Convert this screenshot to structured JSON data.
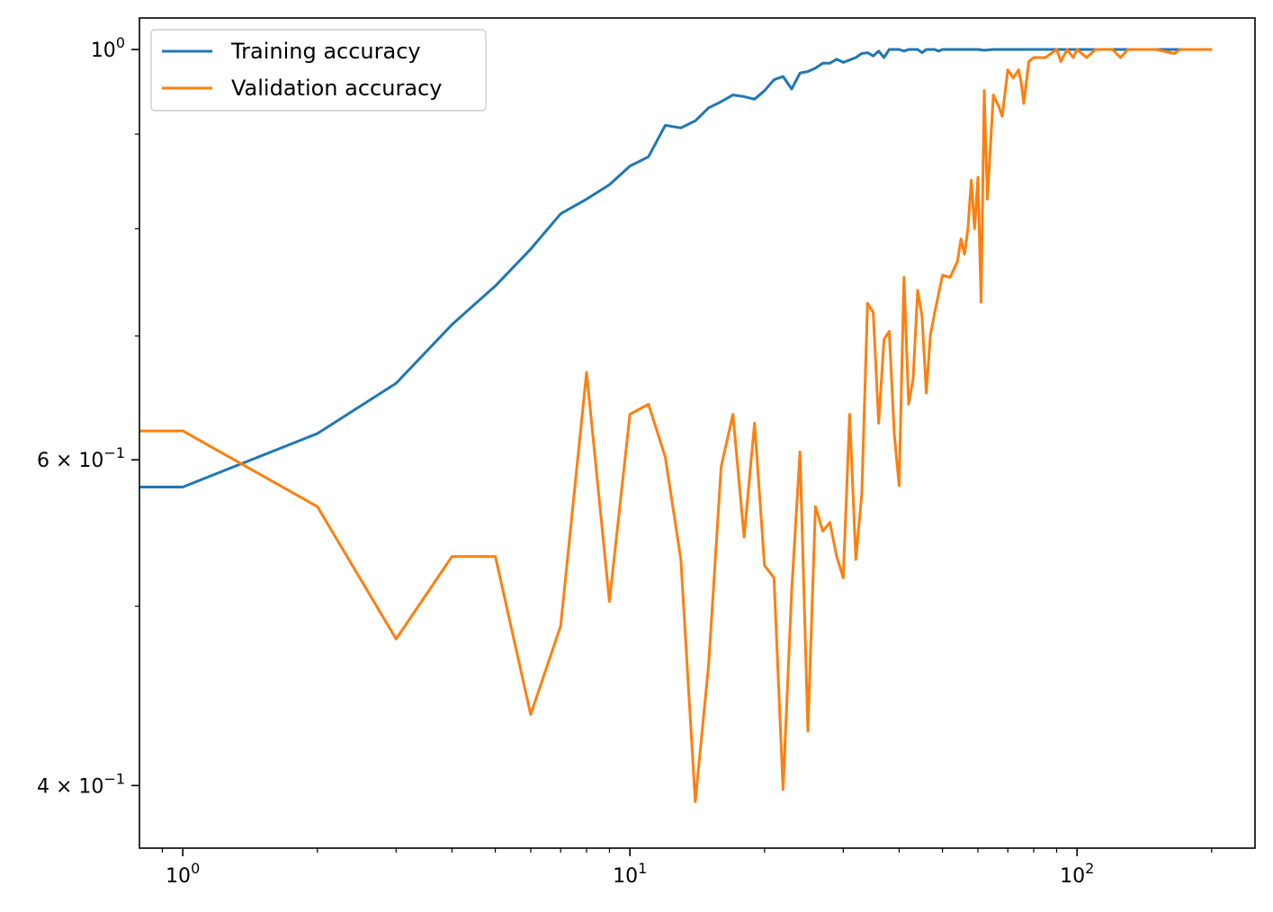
{
  "chart_data": {
    "type": "line",
    "title": "",
    "xlabel": "",
    "ylabel": "",
    "xscale": "log",
    "yscale": "log",
    "xlim": [
      0.8,
      250
    ],
    "ylim": [
      0.37,
      1.04
    ],
    "grid": false,
    "legend_position": "upper-left",
    "x_ticks": [
      {
        "value": 1,
        "base": "10",
        "exp": "0"
      },
      {
        "value": 10,
        "base": "10",
        "exp": "1"
      },
      {
        "value": 100,
        "base": "10",
        "exp": "2"
      }
    ],
    "y_ticks": [
      {
        "value": 1.0,
        "prefix": "",
        "base": "10",
        "exp": "0"
      },
      {
        "value": 0.6,
        "prefix": "6 × ",
        "base": "10",
        "exp": "−1"
      },
      {
        "value": 0.4,
        "prefix": "4 × ",
        "base": "10",
        "exp": "−1"
      }
    ],
    "y_minor_ticks": [
      0.5,
      0.7,
      0.8,
      0.9
    ],
    "series": [
      {
        "name": "Training accuracy",
        "color": "#1f77b4",
        "points": [
          [
            0,
            0.58
          ],
          [
            1,
            0.58
          ],
          [
            2,
            0.62
          ],
          [
            3,
            0.66
          ],
          [
            4,
            0.71
          ],
          [
            5,
            0.745
          ],
          [
            6,
            0.78
          ],
          [
            7,
            0.815
          ],
          [
            8,
            0.83
          ],
          [
            9,
            0.845
          ],
          [
            10,
            0.865
          ],
          [
            11,
            0.875
          ],
          [
            12,
            0.91
          ],
          [
            13,
            0.907
          ],
          [
            14,
            0.915
          ],
          [
            15,
            0.93
          ],
          [
            16,
            0.937
          ],
          [
            17,
            0.945
          ],
          [
            18,
            0.943
          ],
          [
            19,
            0.94
          ],
          [
            20,
            0.95
          ],
          [
            21,
            0.963
          ],
          [
            22,
            0.967
          ],
          [
            23,
            0.952
          ],
          [
            24,
            0.971
          ],
          [
            25,
            0.973
          ],
          [
            26,
            0.977
          ],
          [
            27,
            0.983
          ],
          [
            28,
            0.983
          ],
          [
            29,
            0.988
          ],
          [
            30,
            0.984
          ],
          [
            31,
            0.987
          ],
          [
            32,
            0.99
          ],
          [
            33,
            0.995
          ],
          [
            34,
            0.996
          ],
          [
            35,
            0.992
          ],
          [
            36,
            0.998
          ],
          [
            37,
            0.99
          ],
          [
            38,
            1.0
          ],
          [
            39,
            1.0
          ],
          [
            40,
            1.0
          ],
          [
            41,
            0.998
          ],
          [
            42,
            1.0
          ],
          [
            44,
            1.0
          ],
          [
            45,
            0.996
          ],
          [
            46,
            1.0
          ],
          [
            48,
            1.0
          ],
          [
            49,
            0.998
          ],
          [
            50,
            1.0
          ],
          [
            52,
            1.0
          ],
          [
            55,
            1.0
          ],
          [
            60,
            1.0
          ],
          [
            62,
            0.999
          ],
          [
            65,
            1.0
          ],
          [
            80,
            1.0
          ],
          [
            100,
            1.0
          ],
          [
            150,
            1.0
          ],
          [
            199,
            1.0
          ]
        ]
      },
      {
        "name": "Validation accuracy",
        "color": "#ff7f0e",
        "points": [
          [
            0,
            0.622
          ],
          [
            1,
            0.622
          ],
          [
            2,
            0.566
          ],
          [
            3,
            0.48
          ],
          [
            4,
            0.532
          ],
          [
            5,
            0.532
          ],
          [
            6,
            0.437
          ],
          [
            7,
            0.488
          ],
          [
            8,
            0.669
          ],
          [
            9,
            0.503
          ],
          [
            10,
            0.635
          ],
          [
            11,
            0.643
          ],
          [
            12,
            0.602
          ],
          [
            13,
            0.53
          ],
          [
            14,
            0.392
          ],
          [
            15,
            0.465
          ],
          [
            16,
            0.595
          ],
          [
            17,
            0.635
          ],
          [
            18,
            0.545
          ],
          [
            19,
            0.628
          ],
          [
            20,
            0.526
          ],
          [
            21,
            0.518
          ],
          [
            22,
            0.398
          ],
          [
            23,
            0.51
          ],
          [
            24,
            0.606
          ],
          [
            25,
            0.428
          ],
          [
            26,
            0.566
          ],
          [
            27,
            0.549
          ],
          [
            28,
            0.555
          ],
          [
            29,
            0.532
          ],
          [
            30,
            0.518
          ],
          [
            31,
            0.635
          ],
          [
            32,
            0.53
          ],
          [
            33,
            0.575
          ],
          [
            34,
            0.729
          ],
          [
            35,
            0.721
          ],
          [
            36,
            0.628
          ],
          [
            37,
            0.697
          ],
          [
            38,
            0.704
          ],
          [
            39,
            0.62
          ],
          [
            40,
            0.581
          ],
          [
            41,
            0.753
          ],
          [
            42,
            0.643
          ],
          [
            43,
            0.664
          ],
          [
            44,
            0.741
          ],
          [
            45,
            0.717
          ],
          [
            46,
            0.652
          ],
          [
            47,
            0.701
          ],
          [
            48,
            0.72
          ],
          [
            50,
            0.755
          ],
          [
            52,
            0.753
          ],
          [
            54,
            0.768
          ],
          [
            55,
            0.79
          ],
          [
            56,
            0.775
          ],
          [
            57,
            0.8
          ],
          [
            58,
            0.85
          ],
          [
            59,
            0.8
          ],
          [
            60,
            0.853
          ],
          [
            61,
            0.73
          ],
          [
            62,
            0.95
          ],
          [
            63,
            0.83
          ],
          [
            65,
            0.945
          ],
          [
            67,
            0.93
          ],
          [
            68,
            0.92
          ],
          [
            70,
            0.975
          ],
          [
            72,
            0.965
          ],
          [
            74,
            0.975
          ],
          [
            75,
            0.96
          ],
          [
            76,
            0.935
          ],
          [
            78,
            0.985
          ],
          [
            80,
            0.99
          ],
          [
            85,
            0.99
          ],
          [
            90,
            1.0
          ],
          [
            92,
            0.985
          ],
          [
            95,
            1.0
          ],
          [
            98,
            0.99
          ],
          [
            100,
            1.0
          ],
          [
            105,
            0.99
          ],
          [
            110,
            1.0
          ],
          [
            120,
            1.0
          ],
          [
            125,
            0.99
          ],
          [
            130,
            1.0
          ],
          [
            150,
            1.0
          ],
          [
            165,
            0.995
          ],
          [
            170,
            1.0
          ],
          [
            199,
            1.0
          ]
        ]
      }
    ]
  }
}
